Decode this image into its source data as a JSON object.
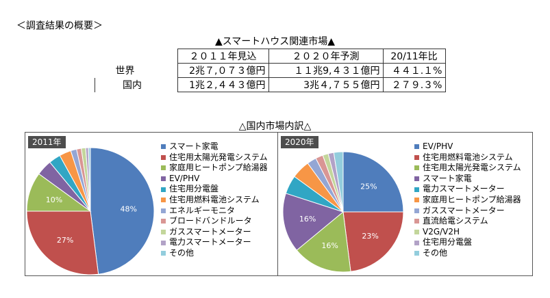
{
  "header": {
    "title": "＜調査結果の概要＞"
  },
  "market_table": {
    "title": "▲スマートハウス関連市場▲",
    "columns": [
      "２０１１年見込",
      "２０２０年予測",
      "20/11年比"
    ],
    "rows": [
      {
        "label": "世界",
        "values": [
          "2兆７,０７３億円",
          "１１兆9,４３１億円",
          "４４１.１%"
        ]
      },
      {
        "label": "国内",
        "values": [
          "1兆２,４４３億円",
          "3兆４,７５５億円",
          "２７９.３%"
        ]
      }
    ]
  },
  "section": {
    "title": "△国内市場内訳△"
  },
  "chart_data": [
    {
      "type": "pie",
      "title": "2011年",
      "slices": [
        {
          "label": "スマート家電",
          "value": 48,
          "color": "#4f7dbc",
          "data_label": "48%"
        },
        {
          "label": "住宅用太陽光発電システム",
          "value": 27,
          "color": "#c0504d",
          "data_label": "27%"
        },
        {
          "label": "家庭用ヒートポンプ給湯器",
          "value": 10,
          "color": "#9bbb59",
          "data_label": "10%"
        },
        {
          "label": "EV/PHV",
          "value": 4,
          "color": "#8064a2",
          "data_label": ""
        },
        {
          "label": "住宅用分電盤",
          "value": 3,
          "color": "#31a6c4",
          "data_label": ""
        },
        {
          "label": "住宅用燃料電池システム",
          "value": 3,
          "color": "#f79646",
          "data_label": ""
        },
        {
          "label": "エネルギーモニタ",
          "value": 1.5,
          "color": "#94a6d4",
          "data_label": ""
        },
        {
          "label": "ブロードバンドルータ",
          "value": 1.2,
          "color": "#d99694",
          "data_label": ""
        },
        {
          "label": "ガススマートメーター",
          "value": 1.1,
          "color": "#c3d69b",
          "data_label": ""
        },
        {
          "label": "電力スマートメーター",
          "value": 0.7,
          "color": "#b2a2c7",
          "data_label": ""
        },
        {
          "label": "その他",
          "value": 0.5,
          "color": "#93cddd",
          "data_label": ""
        }
      ]
    },
    {
      "type": "pie",
      "title": "2020年",
      "slices": [
        {
          "label": "EV/PHV",
          "value": 25,
          "color": "#4f7dbc",
          "data_label": "25%"
        },
        {
          "label": "住宅用燃料電池システム",
          "value": 23,
          "color": "#c0504d",
          "data_label": "23%"
        },
        {
          "label": "住宅用太陽光発電システム",
          "value": 16,
          "color": "#9bbb59",
          "data_label": "16%"
        },
        {
          "label": "スマート家電",
          "value": 16,
          "color": "#8064a2",
          "data_label": "16%"
        },
        {
          "label": "電力スマートメーター",
          "value": 5,
          "color": "#31a6c4",
          "data_label": ""
        },
        {
          "label": "家庭用ヒートポンプ給湯器",
          "value": 5,
          "color": "#f79646",
          "data_label": ""
        },
        {
          "label": "ガススマートメーター",
          "value": 2.5,
          "color": "#94a6d4",
          "data_label": ""
        },
        {
          "label": "直流給電システム",
          "value": 2,
          "color": "#d99694",
          "data_label": ""
        },
        {
          "label": "V2G/V2H",
          "value": 1.5,
          "color": "#c3d69b",
          "data_label": ""
        },
        {
          "label": "住宅用分電盤",
          "value": 1.5,
          "color": "#b2a2c7",
          "data_label": ""
        },
        {
          "label": "その他",
          "value": 2.5,
          "color": "#93cddd",
          "data_label": ""
        }
      ]
    }
  ]
}
